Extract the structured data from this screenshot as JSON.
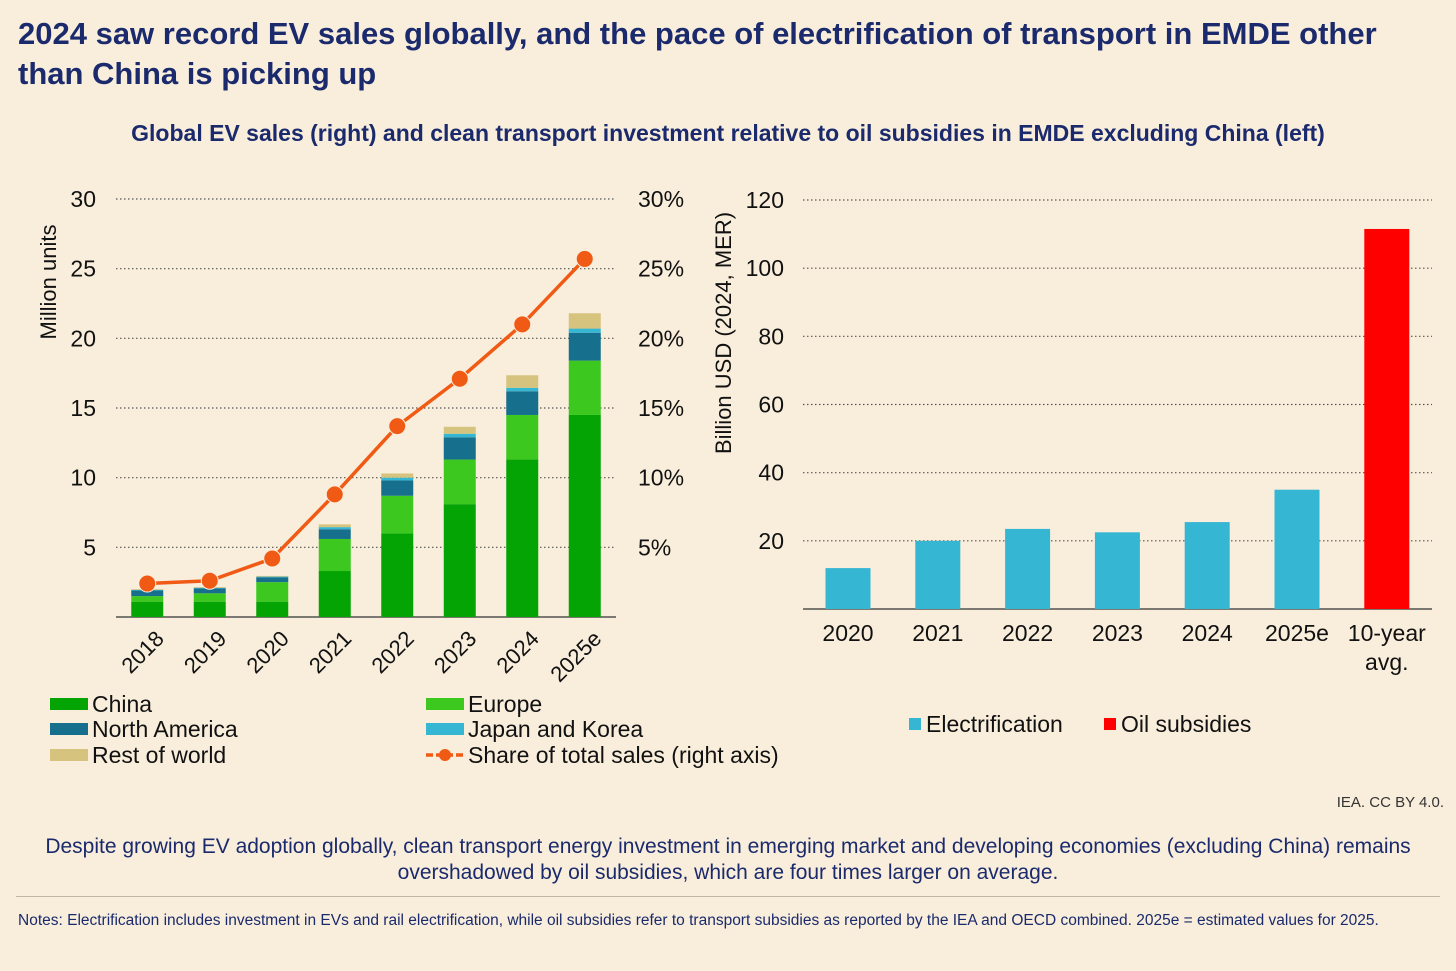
{
  "header": {
    "title": "2024 saw record EV sales globally, and the pace of electrification of transport in EMDE other than China is picking up",
    "subtitle": "Global EV sales (right) and clean transport investment relative to oil subsidies in EMDE excluding China (left)"
  },
  "chart_data": [
    {
      "type": "bar",
      "stacked": true,
      "categories": [
        "2018",
        "2019",
        "2020",
        "2021",
        "2022",
        "2023",
        "2024",
        "2025e"
      ],
      "ylabel": "Million units",
      "ylim": [
        0,
        30
      ],
      "yticks": [
        5,
        10,
        15,
        20,
        25,
        30
      ],
      "y2lim": [
        0,
        30
      ],
      "y2ticks": [
        "5%",
        "10%",
        "15%",
        "20%",
        "25%",
        "30%"
      ],
      "grid": true,
      "series": [
        {
          "name": "China",
          "color": "#05a405",
          "values": [
            1.1,
            1.1,
            1.1,
            3.3,
            6.0,
            8.1,
            11.3,
            14.5
          ]
        },
        {
          "name": "Europe",
          "color": "#3cc81e",
          "values": [
            0.4,
            0.6,
            1.4,
            2.3,
            2.7,
            3.2,
            3.2,
            3.9
          ]
        },
        {
          "name": "North America",
          "color": "#166f8c",
          "values": [
            0.4,
            0.35,
            0.35,
            0.7,
            1.1,
            1.6,
            1.7,
            2.0
          ]
        },
        {
          "name": "Japan and Korea",
          "color": "#35b6d3",
          "values": [
            0.05,
            0.05,
            0.05,
            0.15,
            0.2,
            0.25,
            0.25,
            0.3
          ]
        },
        {
          "name": "Rest of world",
          "color": "#d6c37e",
          "values": [
            0.05,
            0.05,
            0.05,
            0.2,
            0.3,
            0.5,
            0.9,
            1.1
          ]
        }
      ],
      "line": {
        "name": "Share of total sales (right axis)",
        "color": "#f05a14",
        "values": [
          2.4,
          2.6,
          4.2,
          8.8,
          13.7,
          17.1,
          21.0,
          25.7
        ]
      }
    },
    {
      "type": "bar",
      "categories": [
        "2020",
        "2021",
        "2022",
        "2023",
        "2024",
        "2025e",
        "10-year avg."
      ],
      "ylabel": "Billion USD (2024, MER)",
      "ylim": [
        0,
        120
      ],
      "yticks": [
        20,
        40,
        60,
        80,
        100,
        120
      ],
      "grid": true,
      "series": [
        {
          "name": "Electrification",
          "color": "#35b6d3",
          "values": [
            12,
            20,
            23.5,
            22.5,
            25.5,
            35,
            null
          ]
        },
        {
          "name": "Oil subsidies",
          "color": "#ff0000",
          "values": [
            null,
            null,
            null,
            null,
            null,
            null,
            111.5
          ]
        }
      ]
    }
  ],
  "footer": {
    "credit": "IEA. CC BY 4.0.",
    "caption": "Despite growing EV adoption globally, clean transport energy investment in emerging market and developing economies (excluding China) remains overshadowed by oil subsidies, which are four times larger on average.",
    "notes": "Notes: Electrification includes investment in EVs and rail electrification, while oil subsidies refer to transport subsidies as reported by the IEA and OECD combined. 2025e = estimated values for 2025."
  }
}
